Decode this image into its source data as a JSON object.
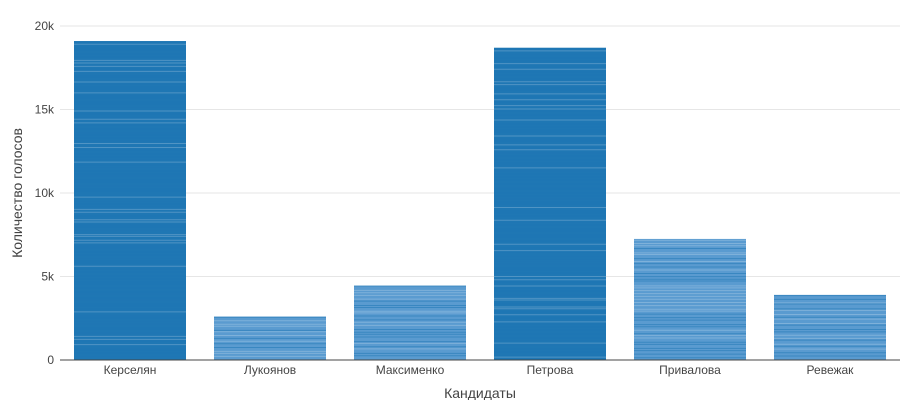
{
  "chart_data": {
    "type": "bar",
    "categories": [
      "Керселян",
      "Лукоянов",
      "Максименко",
      "Петрова",
      "Привалова",
      "Ревежак"
    ],
    "values": [
      19100,
      2600,
      4450,
      18700,
      7250,
      3900
    ],
    "title": "",
    "xlabel": "Кандидаты",
    "ylabel": "Количество голосов",
    "ylim": [
      0,
      20000
    ],
    "yticks": [
      0,
      5000,
      10000,
      15000,
      20000
    ],
    "ytick_labels": [
      "0",
      "5k",
      "10k",
      "15k",
      "20k"
    ],
    "grid": true,
    "colors": {
      "bar": "#1f77b4",
      "bar_light": "#5a9bd0",
      "grid": "#e6e6e6",
      "text": "#444444"
    }
  }
}
